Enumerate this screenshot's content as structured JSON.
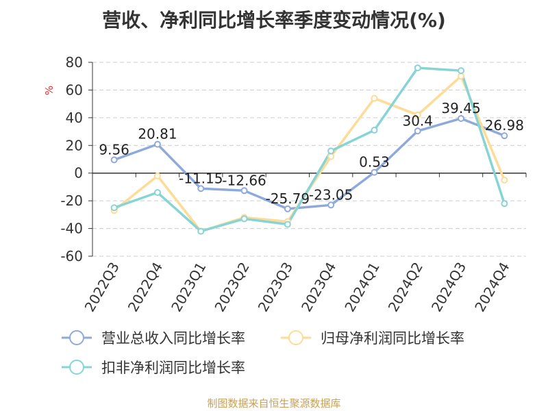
{
  "title": "营收、净利同比增长率季度变动情况(%)",
  "source": "制图数据来自恒生聚源数据库",
  "chart_data": {
    "type": "line",
    "ylabel": "%",
    "ylim": [
      -60,
      80
    ],
    "yticks": [
      80,
      60,
      40,
      20,
      0,
      -20,
      -40,
      -60
    ],
    "categories": [
      "2022Q3",
      "2022Q4",
      "2023Q1",
      "2023Q2",
      "2023Q3",
      "2023Q4",
      "2024Q1",
      "2024Q2",
      "2024Q3",
      "2024Q4"
    ],
    "grid": true,
    "legend_position": "bottom",
    "series": [
      {
        "name": "营业总收入同比增长率",
        "color": "#8eaadb",
        "values": [
          9.56,
          20.81,
          -11.15,
          -12.66,
          -25.79,
          -23.05,
          0.53,
          30.4,
          39.45,
          26.98
        ],
        "labels": [
          "9.56",
          "20.81",
          "-11.15",
          "-12.66",
          "-25.79",
          "-23.05",
          "0.53",
          "30.4",
          "39.45",
          "26.98"
        ]
      },
      {
        "name": "归母净利润同比增长率",
        "color": "#fedb97",
        "values": [
          -27,
          -2,
          -42,
          -32,
          -35,
          12,
          54,
          42,
          70,
          -5
        ]
      },
      {
        "name": "扣非净利润同比增长率",
        "color": "#87d4d6",
        "values": [
          -25,
          -14,
          -42,
          -33,
          -37,
          16,
          31,
          76,
          74,
          -22
        ]
      }
    ]
  }
}
